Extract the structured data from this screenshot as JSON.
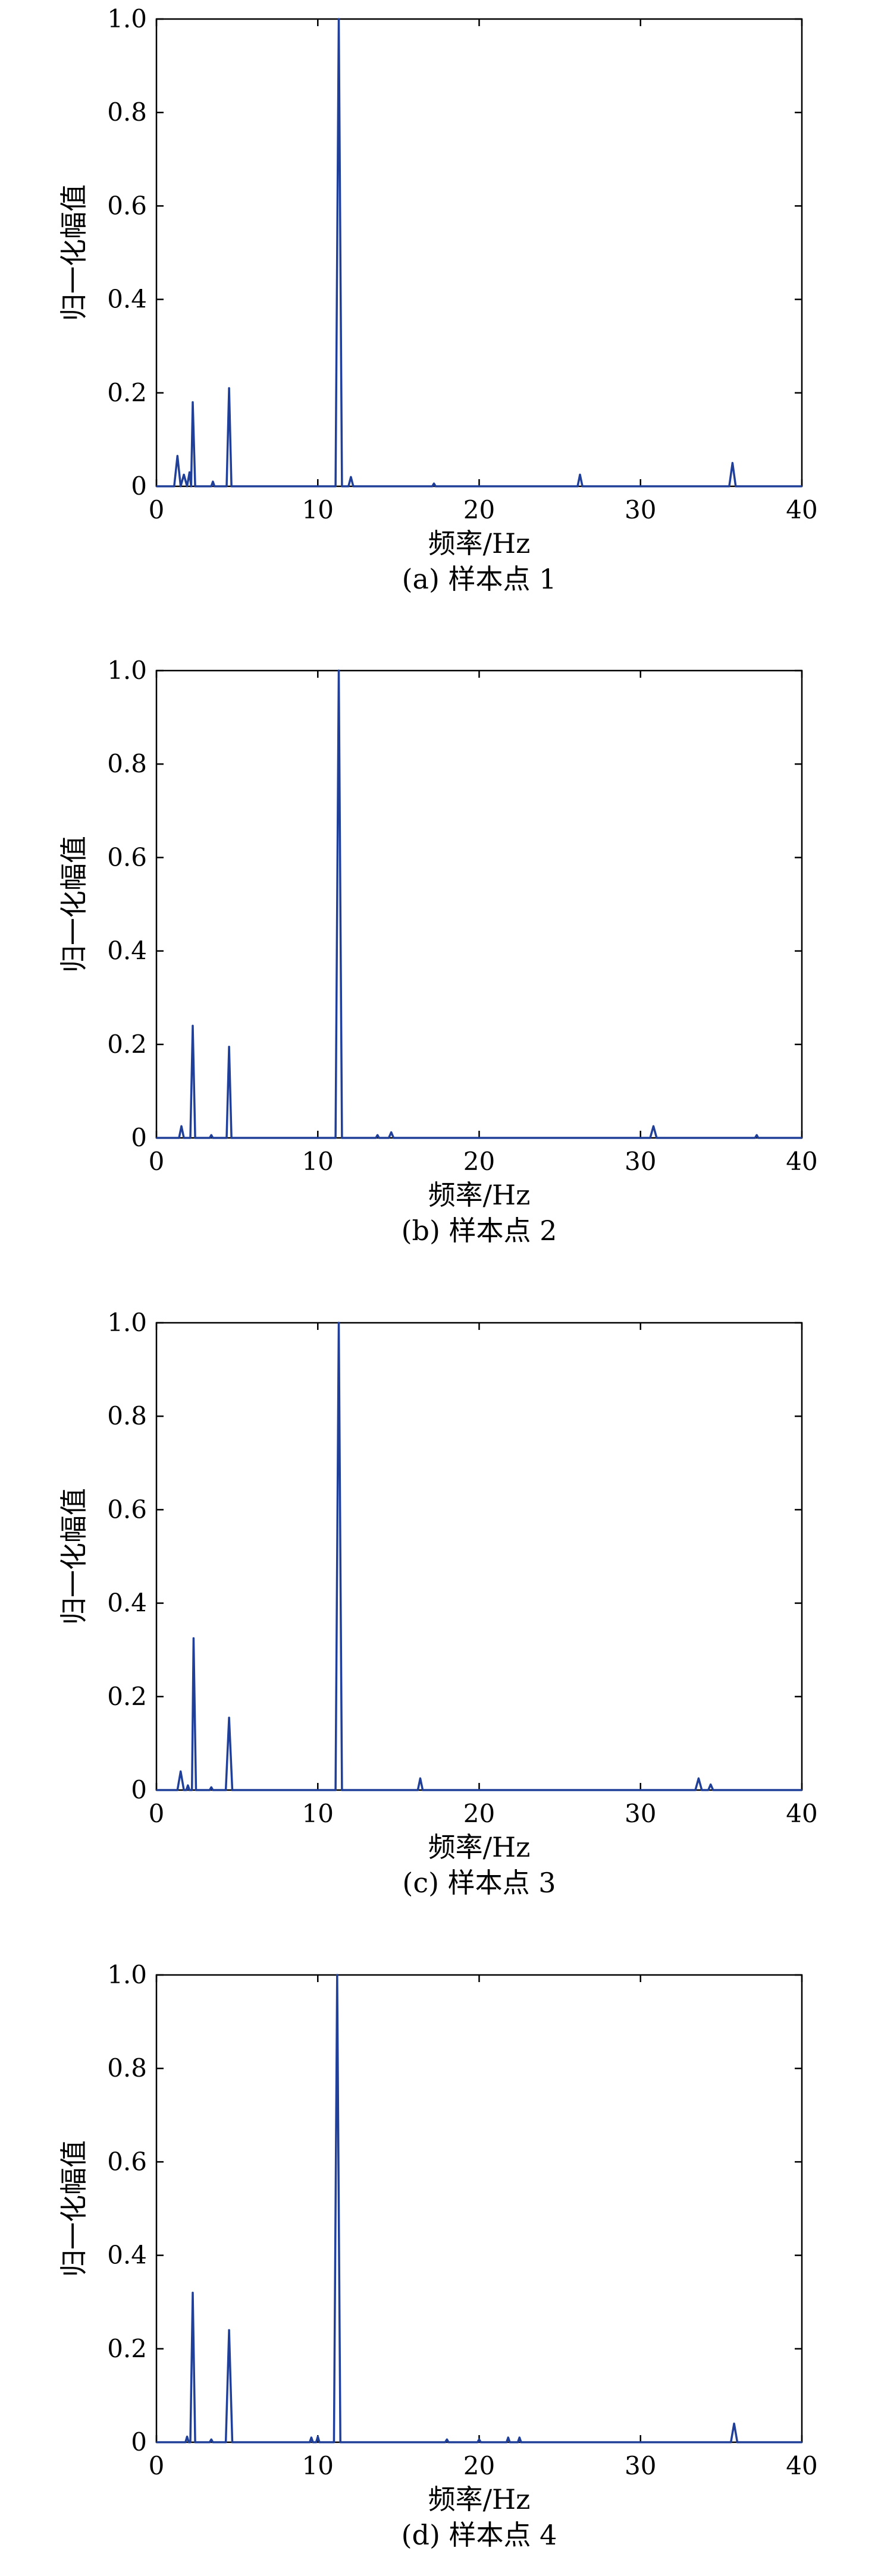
{
  "style": {
    "line_color": "#1f3f99",
    "axis_color": "#000000"
  },
  "chart_data": [
    {
      "type": "line",
      "caption": "(a) 样本点 1",
      "xlabel": "频率/Hz",
      "ylabel": "归一化幅值",
      "xlim": [
        0,
        40
      ],
      "ylim": [
        0,
        1.0
      ],
      "xticks": [
        0,
        10,
        20,
        30,
        40
      ],
      "yticks": [
        0,
        0.2,
        0.4,
        0.6,
        0.8,
        1.0
      ],
      "ytick_labels": [
        "0",
        "0.2",
        "0.4",
        "0.6",
        "0.8",
        "1.0"
      ],
      "grid": false,
      "x": [
        0,
        1.1,
        1.3,
        1.5,
        1.7,
        1.9,
        2.05,
        2.15,
        2.25,
        2.4,
        2.6,
        3.4,
        3.5,
        3.6,
        4.35,
        4.5,
        4.65,
        11.1,
        11.3,
        11.5,
        11.9,
        12.05,
        12.2,
        17.1,
        17.2,
        17.3,
        26.1,
        26.25,
        26.4,
        35.5,
        35.7,
        35.9,
        40
      ],
      "y": [
        0,
        0,
        0.065,
        0,
        0.025,
        0,
        0.03,
        0,
        0.18,
        0,
        0,
        0,
        0.01,
        0,
        0,
        0.21,
        0,
        0,
        1.0,
        0,
        0,
        0.02,
        0,
        0,
        0.006,
        0,
        0,
        0.025,
        0,
        0,
        0.05,
        0,
        0
      ]
    },
    {
      "type": "line",
      "caption": "(b) 样本点 2",
      "xlabel": "频率/Hz",
      "ylabel": "归一化幅值",
      "xlim": [
        0,
        40
      ],
      "ylim": [
        0,
        1.0
      ],
      "xticks": [
        0,
        10,
        20,
        30,
        40
      ],
      "yticks": [
        0,
        0.2,
        0.4,
        0.6,
        0.8,
        1.0
      ],
      "ytick_labels": [
        "0",
        "0.2",
        "0.4",
        "0.6",
        "0.8",
        "1.0"
      ],
      "grid": false,
      "x": [
        0,
        1.4,
        1.55,
        1.7,
        2.1,
        2.25,
        2.4,
        3.3,
        3.4,
        3.5,
        4.35,
        4.5,
        4.65,
        11.1,
        11.3,
        11.5,
        13.6,
        13.7,
        13.8,
        14.4,
        14.55,
        14.7,
        30.6,
        30.8,
        31.0,
        37.1,
        37.2,
        37.3,
        40
      ],
      "y": [
        0,
        0,
        0.025,
        0,
        0,
        0.24,
        0,
        0,
        0.006,
        0,
        0,
        0.195,
        0,
        0,
        1.0,
        0,
        0,
        0.006,
        0,
        0,
        0.012,
        0,
        0,
        0.025,
        0,
        0,
        0.006,
        0,
        0
      ]
    },
    {
      "type": "line",
      "caption": "(c) 样本点 3",
      "xlabel": "频率/Hz",
      "ylabel": "归一化幅值",
      "xlim": [
        0,
        40
      ],
      "ylim": [
        0,
        1.0
      ],
      "xticks": [
        0,
        10,
        20,
        30,
        40
      ],
      "yticks": [
        0,
        0.2,
        0.4,
        0.6,
        0.8,
        1.0
      ],
      "ytick_labels": [
        "0",
        "0.2",
        "0.4",
        "0.6",
        "0.8",
        "1.0"
      ],
      "grid": false,
      "x": [
        0,
        1.3,
        1.5,
        1.7,
        1.85,
        1.95,
        2.05,
        2.2,
        2.3,
        2.45,
        3.3,
        3.4,
        3.5,
        4.3,
        4.5,
        4.7,
        11.1,
        11.3,
        11.5,
        16.2,
        16.35,
        16.5,
        33.4,
        33.6,
        33.8,
        34.2,
        34.35,
        34.5,
        40
      ],
      "y": [
        0,
        0,
        0.04,
        0,
        0,
        0.01,
        0,
        0,
        0.325,
        0,
        0,
        0.006,
        0,
        0,
        0.155,
        0,
        0,
        1.0,
        0,
        0,
        0.025,
        0,
        0,
        0.025,
        0,
        0,
        0.012,
        0,
        0
      ]
    },
    {
      "type": "line",
      "caption": "(d) 样本点 4",
      "xlabel": "频率/Hz",
      "ylabel": "归一化幅值",
      "xlim": [
        0,
        40
      ],
      "ylim": [
        0,
        1.0
      ],
      "xticks": [
        0,
        10,
        20,
        30,
        40
      ],
      "yticks": [
        0,
        0.2,
        0.4,
        0.6,
        0.8,
        1.0
      ],
      "ytick_labels": [
        "0",
        "0.2",
        "0.4",
        "0.6",
        "0.8",
        "1.0"
      ],
      "grid": false,
      "x": [
        0,
        1.8,
        1.9,
        2.0,
        2.1,
        2.25,
        2.4,
        3.3,
        3.4,
        3.5,
        4.3,
        4.5,
        4.7,
        9.5,
        9.6,
        9.7,
        9.9,
        10.0,
        10.1,
        11.0,
        11.2,
        11.4,
        17.9,
        18.0,
        18.1,
        19.9,
        20.0,
        20.1,
        21.7,
        21.8,
        21.9,
        22.4,
        22.5,
        22.6,
        35.6,
        35.8,
        36.0,
        40
      ],
      "y": [
        0,
        0,
        0.012,
        0,
        0,
        0.32,
        0,
        0,
        0.006,
        0,
        0,
        0.24,
        0,
        0,
        0.01,
        0,
        0,
        0.012,
        0,
        0,
        1.0,
        0,
        0,
        0.006,
        0,
        0,
        0.006,
        0,
        0,
        0.01,
        0,
        0,
        0.01,
        0,
        0,
        0.04,
        0,
        0
      ]
    }
  ]
}
